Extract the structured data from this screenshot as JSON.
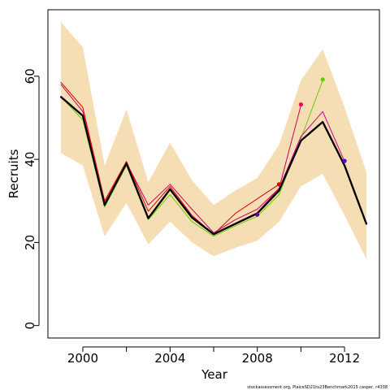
{
  "chart_data": {
    "type": "line",
    "xlabel": "Year",
    "ylabel": "Recruits",
    "xlim": [
      1998.4,
      2013.6
    ],
    "ylim": [
      -3,
      76
    ],
    "x_ticks": [
      2000,
      2002,
      2004,
      2006,
      2008,
      2010,
      2012
    ],
    "x_tick_labels": [
      "2000",
      "",
      "2004",
      "",
      "2008",
      "",
      "2012"
    ],
    "y_ticks": [
      0,
      20,
      40,
      60
    ],
    "y_tick_labels": [
      "0",
      "20",
      "40",
      "60"
    ],
    "grid": false,
    "legend": "none",
    "confidence_band": {
      "color": "#f5deb3",
      "x": [
        1999,
        2000,
        2001,
        2002,
        2003,
        2004,
        2005,
        2006,
        2007,
        2008,
        2009,
        2010,
        2011,
        2012,
        2013
      ],
      "lower": [
        41.5,
        38.5,
        21.5,
        29.5,
        19.5,
        25,
        20,
        16.7,
        18.7,
        20.4,
        25,
        33.5,
        36.5,
        26.5,
        16
      ],
      "upper": [
        73,
        67,
        38.5,
        52,
        34.5,
        44,
        35,
        29,
        32.5,
        35.5,
        43.5,
        59,
        66.5,
        52.5,
        37
      ]
    },
    "series": [
      {
        "color": "#000000",
        "width": 2.2,
        "x": [
          1999,
          2000,
          2001,
          2002,
          2003,
          2004,
          2005,
          2006,
          2007,
          2008,
          2009,
          2010,
          2011,
          2012,
          2013
        ],
        "values": [
          55,
          50.5,
          29,
          39,
          25.8,
          32.8,
          26,
          22,
          24.5,
          27,
          32.5,
          44.5,
          49,
          38.5,
          24.5
        ]
      },
      {
        "color": "#dd0000",
        "width": 1,
        "x": [
          1999,
          2000,
          2001,
          2002,
          2003,
          2004,
          2005,
          2006,
          2007,
          2008,
          2009
        ],
        "values": [
          58.5,
          52.5,
          30,
          39.5,
          27.5,
          33.5,
          26.5,
          22,
          27,
          30.5,
          34
        ],
        "end_point": true
      },
      {
        "color": "#cc0066",
        "width": 1,
        "x": [
          1999,
          2000,
          2001,
          2002,
          2003,
          2004,
          2005,
          2006,
          2007,
          2008,
          2009,
          2010
        ],
        "values": [
          58,
          51.5,
          29.5,
          39.2,
          29,
          34,
          28,
          22.3,
          25.5,
          28,
          33,
          53
        ],
        "end_point": true
      },
      {
        "color": "#66cc00",
        "width": 1,
        "x": [
          1999,
          2000,
          2001,
          2002,
          2003,
          2004,
          2005,
          2006,
          2007,
          2008,
          2009,
          2010,
          2011
        ],
        "values": [
          55,
          49.5,
          28.5,
          38.5,
          25.5,
          31.5,
          25,
          21.5,
          24,
          26.3,
          31.5,
          45,
          59
        ],
        "end_point": true
      },
      {
        "color": "#cc0099",
        "width": 1,
        "x": [
          1999,
          2000,
          2001,
          2002,
          2003,
          2004,
          2005,
          2006,
          2007,
          2008,
          2009,
          2010,
          2011,
          2012
        ],
        "values": [
          55.2,
          50.6,
          29.2,
          39,
          26,
          33,
          26.3,
          22.1,
          24.6,
          27.2,
          33,
          45.5,
          51.5,
          39.5
        ]
      },
      {
        "color": "#000000",
        "width": 2.2,
        "x": [
          1999,
          2000,
          2001,
          2002,
          2003,
          2004,
          2005,
          2006,
          2007,
          2008,
          2009,
          2010,
          2011,
          2012,
          2013
        ],
        "values": [
          55,
          50.5,
          29,
          39,
          25.8,
          32.8,
          26,
          22,
          24.5,
          27,
          32.5,
          44.5,
          49,
          38.5,
          24.5
        ]
      }
    ],
    "points": [
      {
        "x": 2008,
        "y": 26.7,
        "color": "#660099"
      },
      {
        "x": 2009,
        "y": 34,
        "color": "#dd0000"
      },
      {
        "x": 2010,
        "y": 53.2,
        "color": "#ff0066"
      },
      {
        "x": 2011,
        "y": 59.2,
        "color": "#66cc00"
      },
      {
        "x": 2012,
        "y": 39.6,
        "color": "#6600cc"
      }
    ]
  },
  "footnote": "stockassessment.org, PlaiceSD21to23Benchmark2015 casper, r4338"
}
